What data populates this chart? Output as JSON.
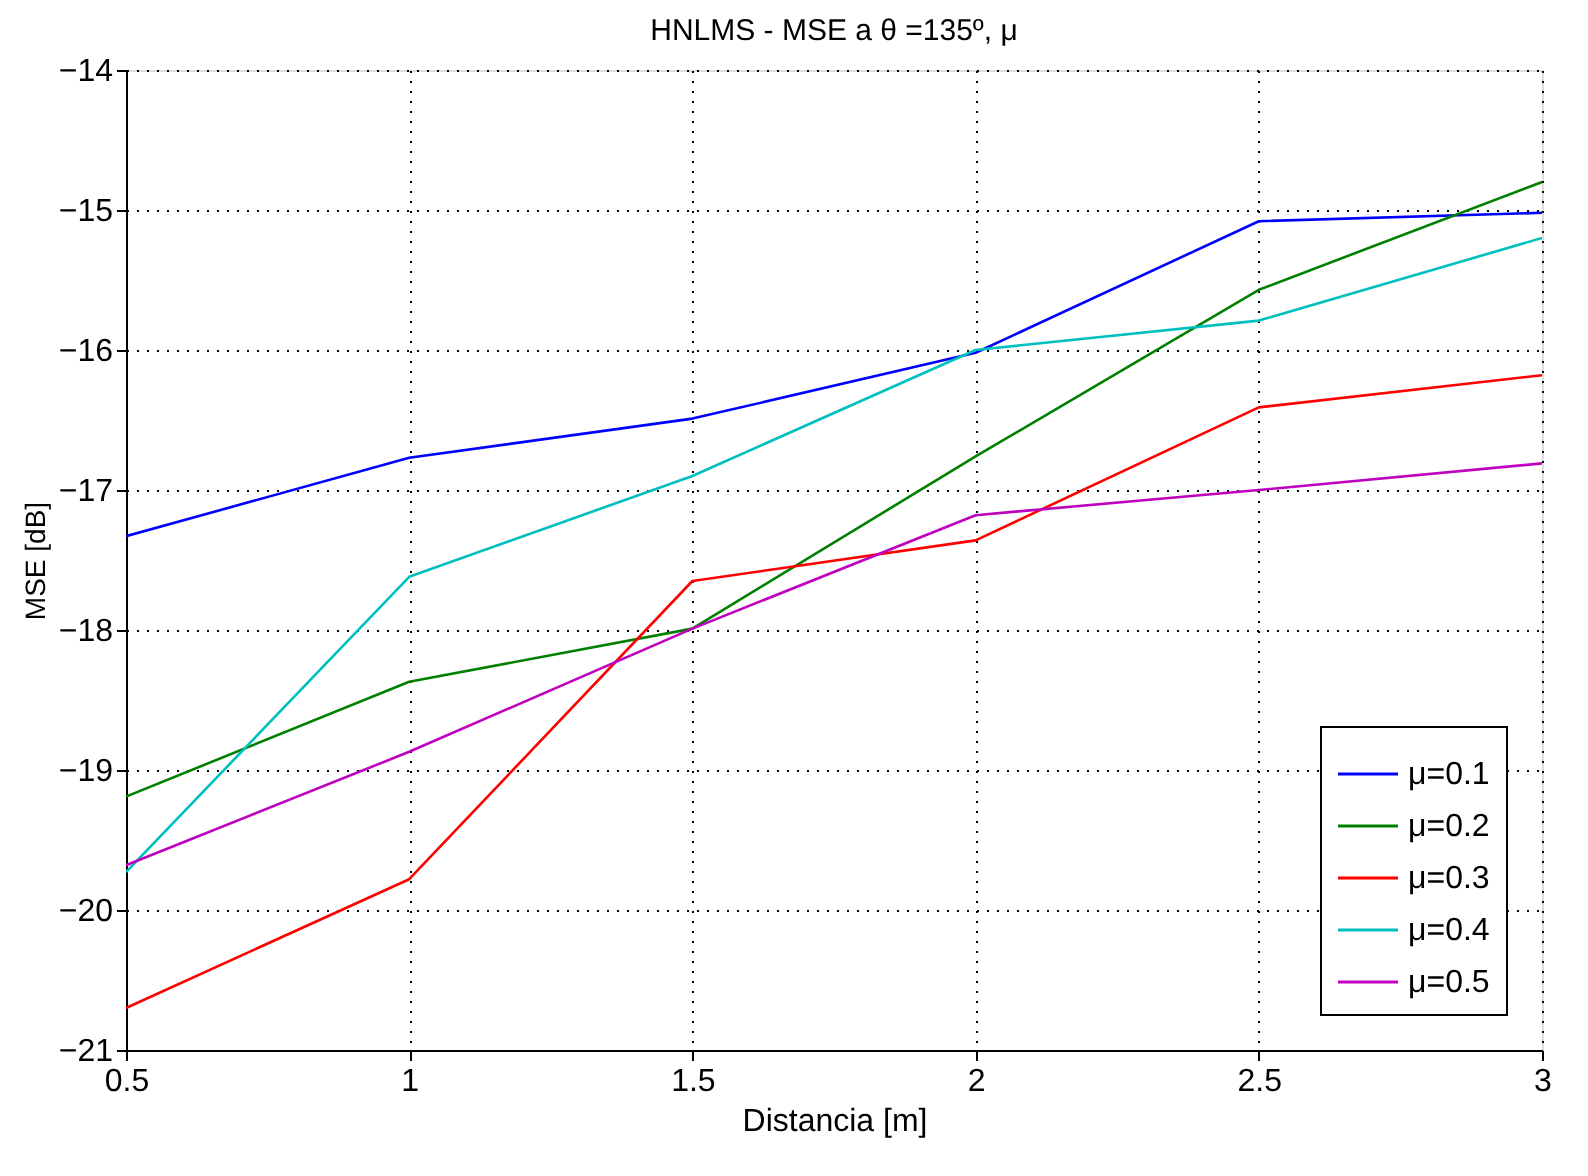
{
  "chart_data": {
    "type": "line",
    "title": "HNLMS - MSE a θ =135º, μ",
    "xlabel": "Distancia [m]",
    "ylabel": "MSE [dB]",
    "x": [
      0.5,
      1,
      1.5,
      2,
      2.5,
      3
    ],
    "series": [
      {
        "name": "μ=0.1",
        "color": "#0000ff",
        "values": [
          -17.33,
          -16.77,
          -16.49,
          -16.02,
          -15.08,
          -15.02
        ]
      },
      {
        "name": "μ=0.2",
        "color": "#008000",
        "values": [
          -19.19,
          -18.37,
          -17.99,
          -16.76,
          -15.57,
          -14.8
        ]
      },
      {
        "name": "μ=0.3",
        "color": "#ff0000",
        "values": [
          -20.7,
          -19.78,
          -17.65,
          -17.36,
          -16.41,
          -16.18
        ]
      },
      {
        "name": "μ=0.4",
        "color": "#00bfbf",
        "values": [
          -19.73,
          -17.62,
          -16.9,
          -16.0,
          -15.79,
          -15.2
        ]
      },
      {
        "name": "μ=0.5",
        "color": "#bf00bf",
        "values": [
          -19.68,
          -18.87,
          -17.99,
          -17.18,
          -17.0,
          -16.81
        ]
      }
    ],
    "xlim": [
      0.5,
      3
    ],
    "xticks": [
      0.5,
      1,
      1.5,
      2,
      2.5,
      3
    ],
    "ylim": [
      -21,
      -14
    ],
    "yticks": [
      -21,
      -20,
      -19,
      -18,
      -17,
      -16,
      -15,
      -14
    ],
    "grid": true,
    "legend": "bottom right",
    "marker": "none",
    "line_style": "solid"
  }
}
